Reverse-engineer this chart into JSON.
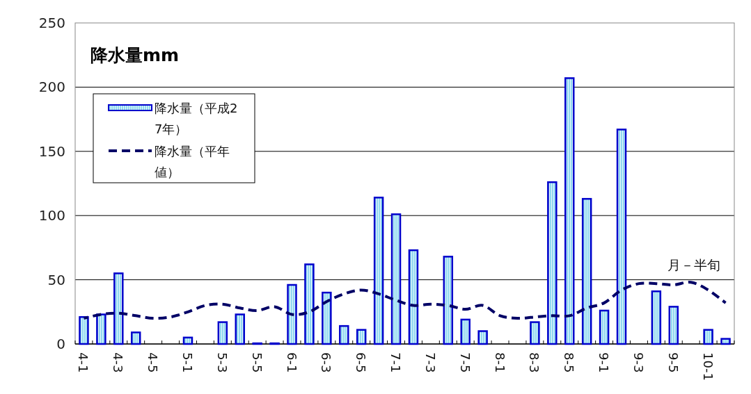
{
  "chart_data": {
    "type": "bar",
    "title": "降水量mm",
    "categories": [
      "4-1",
      null,
      "4-3",
      null,
      "4-5",
      null,
      "5-1",
      null,
      "5-3",
      null,
      "5-5",
      null,
      "6-1",
      null,
      "6-3",
      null,
      "6-5",
      null,
      "7-1",
      null,
      "7-3",
      null,
      "7-5",
      null,
      "8-1",
      null,
      "8-3",
      null,
      "8-5",
      null,
      "9-1",
      null,
      "9-3",
      null,
      "9-5",
      null,
      "10-1",
      null
    ],
    "series": [
      {
        "name": "降水量（平成27年）",
        "color": "#0000cc",
        "values": [
          21,
          23,
          55,
          9,
          0,
          0,
          5,
          0,
          17,
          23,
          0.5,
          0.5,
          46,
          62,
          40,
          14,
          11,
          114,
          101,
          73,
          0,
          68,
          19,
          10,
          0,
          0,
          17,
          126,
          207,
          113,
          26,
          167,
          0,
          41,
          29,
          0,
          11,
          4
        ]
      },
      {
        "name": "降水量（平年値）",
        "type": "line",
        "line_style": "dashed",
        "marker": "none",
        "color": "#000066",
        "values": [
          20,
          23,
          24,
          22,
          20,
          21,
          25,
          30,
          31,
          28,
          26,
          29,
          23,
          25,
          33,
          39,
          42,
          39,
          34,
          30,
          31,
          30,
          27,
          30,
          22,
          20,
          21,
          22,
          22,
          28,
          32,
          42,
          47,
          47,
          46,
          48,
          42,
          32
        ]
      }
    ],
    "ylim": [
      0,
      250
    ],
    "yticks": [
      0,
      50,
      100,
      150,
      200,
      250
    ],
    "grid": "y",
    "legend": "top left",
    "annotations": [
      "月－半旬"
    ]
  }
}
